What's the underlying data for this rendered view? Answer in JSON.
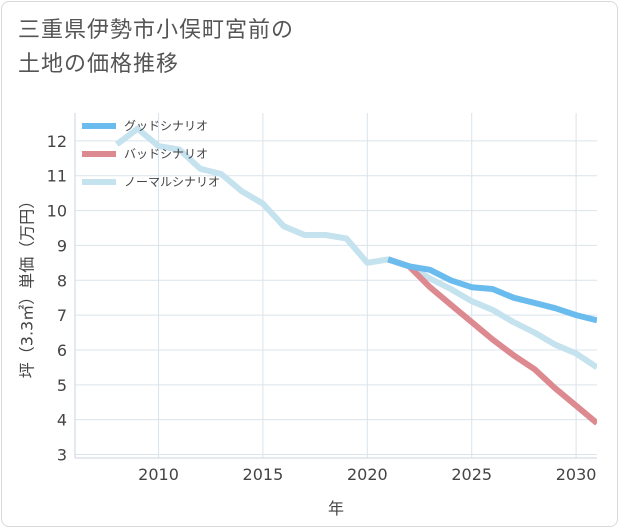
{
  "title": {
    "line1": "三重県伊勢市小俣町宮前の",
    "line2": "土地の価格推移"
  },
  "chart_data": {
    "type": "line",
    "xlabel": "年",
    "ylabel": "坪（3.3㎡）単価（万円）",
    "xlim": [
      2006,
      2031
    ],
    "ylim": [
      2.9,
      12.8
    ],
    "xticks": [
      2010,
      2015,
      2020,
      2025,
      2030
    ],
    "yticks": [
      3,
      4,
      5,
      6,
      7,
      8,
      9,
      10,
      11,
      12
    ],
    "grid": true,
    "legend_position": "top-left",
    "series": [
      {
        "name": "グッドシナリオ",
        "color": "#6bbcee",
        "x": [
          2021,
          2022,
          2023,
          2024,
          2025,
          2026,
          2027,
          2028,
          2029,
          2030,
          2031
        ],
        "y": [
          8.6,
          8.4,
          8.3,
          8.0,
          7.8,
          7.75,
          7.5,
          7.35,
          7.2,
          7.0,
          6.85
        ]
      },
      {
        "name": "バッドシナリオ",
        "color": "#dc8a90",
        "x": [
          2021,
          2022,
          2023,
          2024,
          2025,
          2026,
          2027,
          2028,
          2029,
          2030,
          2031
        ],
        "y": [
          8.6,
          8.4,
          7.8,
          7.3,
          6.8,
          6.3,
          5.85,
          5.45,
          4.9,
          4.4,
          3.9
        ]
      },
      {
        "name": "ノーマルシナリオ",
        "color": "#c5e2ef",
        "x": [
          2008,
          2009,
          2010,
          2011,
          2012,
          2013,
          2014,
          2015,
          2016,
          2017,
          2018,
          2019,
          2020,
          2021,
          2022,
          2023,
          2024,
          2025,
          2026,
          2027,
          2028,
          2029,
          2030,
          2031
        ],
        "y": [
          11.9,
          12.35,
          11.85,
          11.75,
          11.2,
          11.05,
          10.55,
          10.2,
          9.55,
          9.3,
          9.3,
          9.2,
          8.5,
          8.6,
          8.4,
          8.05,
          7.75,
          7.4,
          7.15,
          6.8,
          6.5,
          6.15,
          5.9,
          5.5
        ]
      }
    ]
  }
}
